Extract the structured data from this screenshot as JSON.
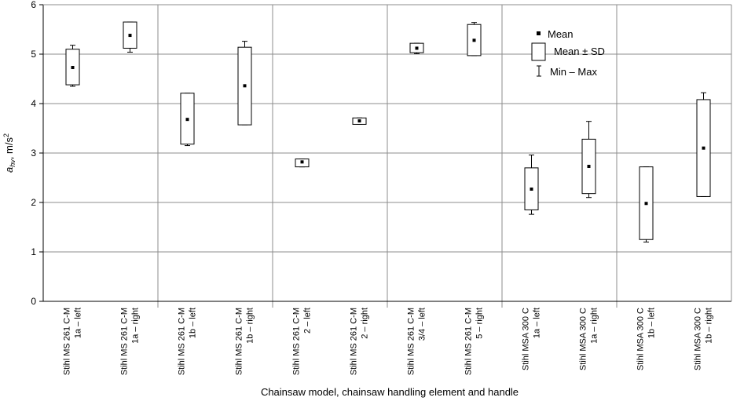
{
  "chart_data": {
    "type": "box",
    "xlabel": "Chainsaw model, chainsaw handling element and handle",
    "ylabel": {
      "main": "a",
      "sub": "hv",
      "unit": ", m/s",
      "sup": "2"
    },
    "ylim": [
      0,
      6
    ],
    "yticks": [
      0,
      1,
      2,
      3,
      4,
      5,
      6
    ],
    "grid": true,
    "groups": [
      {
        "categories": [
          0,
          1
        ]
      },
      {
        "categories": [
          2,
          3
        ]
      },
      {
        "categories": [
          4,
          5
        ]
      },
      {
        "categories": [
          6,
          7
        ]
      },
      {
        "categories": [
          8,
          9
        ]
      },
      {
        "categories": [
          10,
          11
        ]
      }
    ],
    "categories": [
      {
        "line1": "Stihl MS 261 C-M",
        "line2": "1a – left"
      },
      {
        "line1": "Stihl MS 261 C-M",
        "line2": "1a – right"
      },
      {
        "line1": "Stihl MS 261 C-M",
        "line2": "1b – left"
      },
      {
        "line1": "Stihl MS 261 C-M",
        "line2": "1b – right"
      },
      {
        "line1": "Stihl MS 261 C-M",
        "line2": "2 – left"
      },
      {
        "line1": "Stihl MS 261 C-M",
        "line2": "2 – right"
      },
      {
        "line1": "Stihl MS 261 C-M",
        "line2": "3/4 – left"
      },
      {
        "line1": "Stihl MS 261 C-M",
        "line2": "5 – right"
      },
      {
        "line1": "Stihl MSA 300 C",
        "line2": "1a – left"
      },
      {
        "line1": "Stihl MSA 300 C",
        "line2": "1a – right"
      },
      {
        "line1": "Stihl MSA 300 C",
        "line2": "1b – left"
      },
      {
        "line1": "Stihl MSA 300 C",
        "line2": "1b – right"
      }
    ],
    "series": [
      {
        "mean": 4.73,
        "sd_low": 4.38,
        "sd_high": 5.1,
        "min": 4.35,
        "max": 5.18
      },
      {
        "mean": 5.38,
        "sd_low": 5.12,
        "sd_high": 5.65,
        "min": 5.04,
        "max": 5.65
      },
      {
        "mean": 3.68,
        "sd_low": 3.18,
        "sd_high": 4.21,
        "min": 3.15,
        "max": 4.21
      },
      {
        "mean": 4.36,
        "sd_low": 3.57,
        "sd_high": 5.14,
        "min": 3.57,
        "max": 5.26
      },
      {
        "mean": 2.82,
        "sd_low": 2.72,
        "sd_high": 2.88,
        "min": 2.72,
        "max": 2.88
      },
      {
        "mean": 3.65,
        "sd_low": 3.58,
        "sd_high": 3.71,
        "min": 3.58,
        "max": 3.71
      },
      {
        "mean": 5.12,
        "sd_low": 5.03,
        "sd_high": 5.22,
        "min": 5.01,
        "max": 5.22
      },
      {
        "mean": 5.28,
        "sd_low": 4.97,
        "sd_high": 5.6,
        "min": 4.97,
        "max": 5.64
      },
      {
        "mean": 2.27,
        "sd_low": 1.85,
        "sd_high": 2.7,
        "min": 1.76,
        "max": 2.96
      },
      {
        "mean": 2.73,
        "sd_low": 2.18,
        "sd_high": 3.28,
        "min": 2.1,
        "max": 3.64
      },
      {
        "mean": 1.98,
        "sd_low": 1.25,
        "sd_high": 2.72,
        "min": 1.2,
        "max": 2.72
      },
      {
        "mean": 3.1,
        "sd_low": 2.12,
        "sd_high": 4.08,
        "min": 2.12,
        "max": 4.22
      }
    ],
    "legend": {
      "position": "top-right",
      "items": [
        {
          "symbol": "mean",
          "label": "Mean"
        },
        {
          "symbol": "box",
          "label": "Mean ± SD"
        },
        {
          "symbol": "whisker",
          "label": "Min – Max"
        }
      ]
    }
  }
}
